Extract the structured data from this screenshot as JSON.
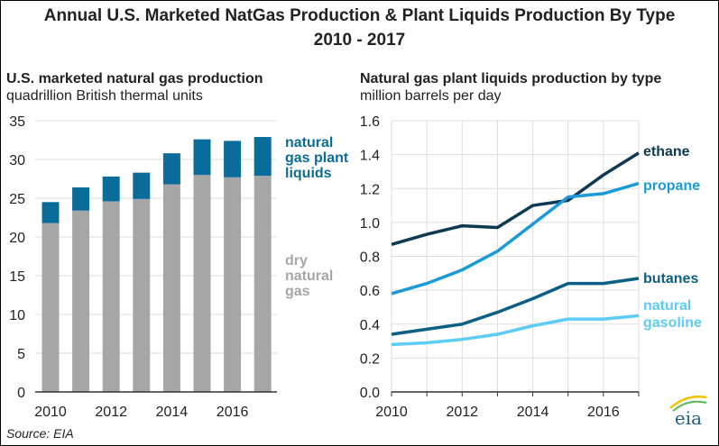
{
  "title_line1": "Annual U.S. Marketed NatGas Production & Plant Liquids Production By Type",
  "title_line2": "2010 - 2017",
  "source": "Source: EIA",
  "logo": "eia",
  "chart_data": [
    {
      "type": "bar",
      "stacked": true,
      "title": "U.S. marketed natural gas production",
      "subtitle": "quadrillion British thermal units",
      "categories": [
        2010,
        2011,
        2012,
        2013,
        2014,
        2015,
        2016,
        2017
      ],
      "xtick_labels": [
        "2010",
        "2012",
        "2014",
        "2016"
      ],
      "ytick_labels": [
        "0",
        "5",
        "10",
        "15",
        "20",
        "25",
        "30",
        "35"
      ],
      "ylim": [
        0,
        35
      ],
      "grid": true,
      "series": [
        {
          "name": "dry natural gas",
          "color": "#a6a6a6",
          "values": [
            21.8,
            23.4,
            24.6,
            24.9,
            26.8,
            28.0,
            27.7,
            27.9
          ]
        },
        {
          "name": "natural gas plant liquids",
          "color": "#0a6c9a",
          "values": [
            2.7,
            3.0,
            3.2,
            3.4,
            4.0,
            4.6,
            4.7,
            5.0
          ]
        }
      ]
    },
    {
      "type": "line",
      "title": "Natural gas plant liquids production by type",
      "subtitle": "million barrels per day",
      "x": [
        2010,
        2011,
        2012,
        2013,
        2014,
        2015,
        2016,
        2017
      ],
      "xtick_labels": [
        "2010",
        "2012",
        "2014",
        "2016"
      ],
      "ytick_labels": [
        "0.0",
        "0.2",
        "0.4",
        "0.6",
        "0.8",
        "1.0",
        "1.2",
        "1.4",
        "1.6"
      ],
      "ylim": [
        0,
        1.6
      ],
      "grid": true,
      "series": [
        {
          "name": "ethane",
          "color": "#0d3a52",
          "values": [
            0.87,
            0.93,
            0.98,
            0.97,
            1.1,
            1.13,
            1.28,
            1.41
          ]
        },
        {
          "name": "propane",
          "color": "#1a9bd7",
          "values": [
            0.58,
            0.64,
            0.72,
            0.83,
            0.99,
            1.15,
            1.17,
            1.23
          ]
        },
        {
          "name": "butanes",
          "color": "#0b5f85",
          "values": [
            0.34,
            0.37,
            0.4,
            0.47,
            0.55,
            0.64,
            0.64,
            0.67
          ]
        },
        {
          "name": "natural gasoline",
          "color": "#5ccbf5",
          "values": [
            0.28,
            0.29,
            0.31,
            0.34,
            0.39,
            0.43,
            0.43,
            0.45
          ]
        }
      ]
    }
  ]
}
